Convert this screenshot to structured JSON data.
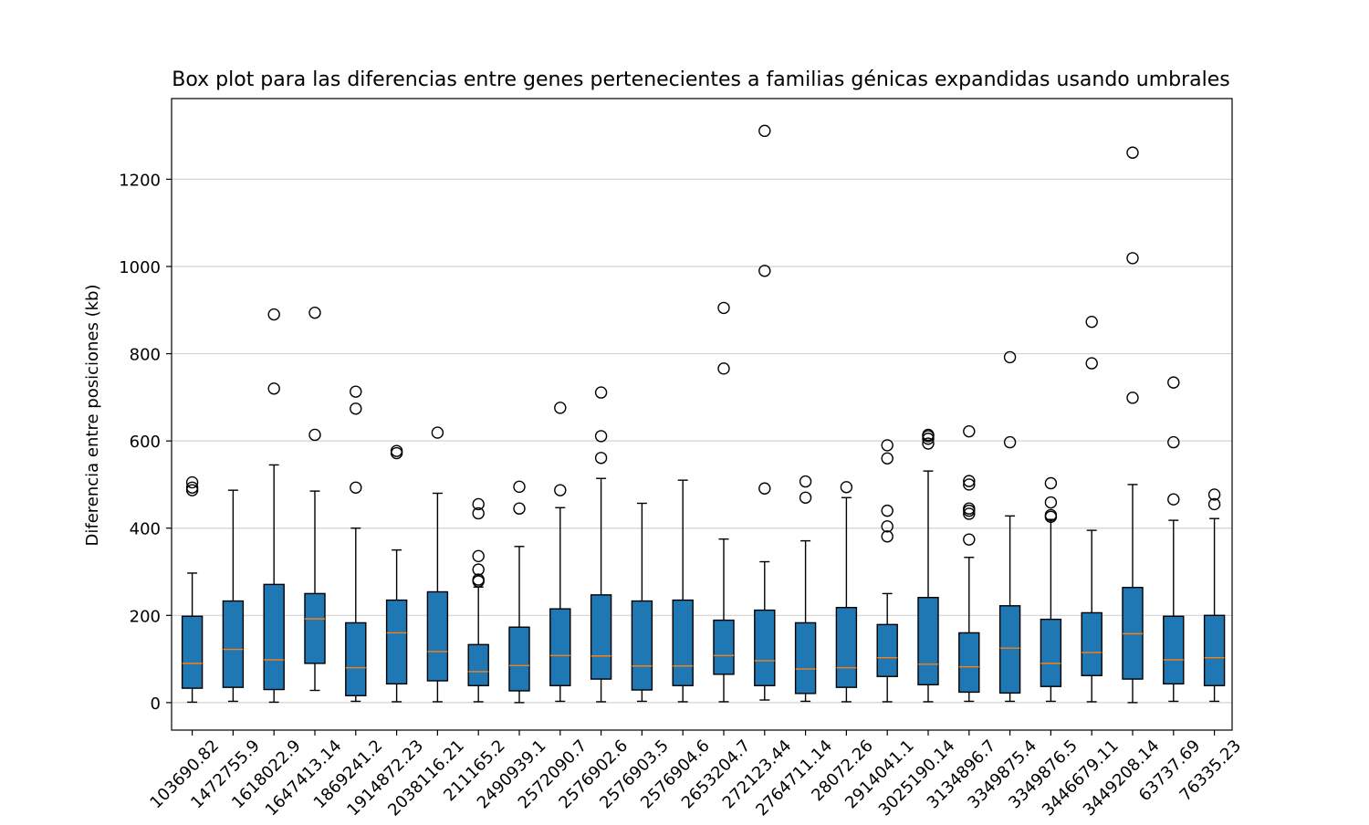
{
  "chart_data": {
    "type": "boxplot",
    "title": "Box plot para las diferencias entre genes pertenecientes a familias génicas expandidas usando umbrales",
    "xlabel": "",
    "ylabel": "Diferencia entre posiciones (kb)",
    "ylim": [
      -63,
      1385
    ],
    "yticks": [
      0,
      200,
      400,
      600,
      800,
      1000,
      1200
    ],
    "grid": "horizontal",
    "box_color": "#1f77b4",
    "median_color": "#ff7f0e",
    "categories": [
      "103690.82",
      "1472755.9",
      "1618022.9",
      "1647413.14",
      "1869241.2",
      "1914872.23",
      "2038116.21",
      "211165.2",
      "2490939.1",
      "2572090.7",
      "2576902.6",
      "2576903.5",
      "2576904.6",
      "2653204.7",
      "272123.44",
      "2764711.14",
      "28072.26",
      "2914041.1",
      "3025190.14",
      "3134896.7",
      "3349875.4",
      "3349876.5",
      "3446679.11",
      "3449208.14",
      "63737.69",
      "76335.23"
    ],
    "boxes": [
      {
        "whislo": 1,
        "q1": 33,
        "med": 90,
        "q3": 198,
        "whishi": 297,
        "fliers": [
          505,
          493,
          487
        ]
      },
      {
        "whislo": 3,
        "q1": 35,
        "med": 122,
        "q3": 233,
        "whishi": 487,
        "fliers": []
      },
      {
        "whislo": 1,
        "q1": 30,
        "med": 98,
        "q3": 271,
        "whishi": 545,
        "fliers": [
          720,
          890
        ]
      },
      {
        "whislo": 28,
        "q1": 90,
        "med": 192,
        "q3": 250,
        "whishi": 485,
        "fliers": [
          614,
          894
        ]
      },
      {
        "whislo": 3,
        "q1": 16,
        "med": 80,
        "q3": 183,
        "whishi": 400,
        "fliers": [
          493,
          674,
          713
        ]
      },
      {
        "whislo": 2,
        "q1": 43,
        "med": 160,
        "q3": 235,
        "whishi": 350,
        "fliers": [
          572,
          577
        ]
      },
      {
        "whislo": 2,
        "q1": 50,
        "med": 117,
        "q3": 254,
        "whishi": 480,
        "fliers": [
          619
        ]
      },
      {
        "whislo": 2,
        "q1": 39,
        "med": 71,
        "q3": 133,
        "whishi": 265,
        "fliers": [
          278,
          282,
          305,
          336,
          434,
          455
        ]
      },
      {
        "whislo": 0,
        "q1": 27,
        "med": 85,
        "q3": 173,
        "whishi": 358,
        "fliers": [
          445,
          495
        ]
      },
      {
        "whislo": 3,
        "q1": 39,
        "med": 108,
        "q3": 215,
        "whishi": 447,
        "fliers": [
          487,
          676
        ]
      },
      {
        "whislo": 2,
        "q1": 54,
        "med": 107,
        "q3": 247,
        "whishi": 514,
        "fliers": [
          561,
          611,
          711
        ]
      },
      {
        "whislo": 3,
        "q1": 29,
        "med": 84,
        "q3": 233,
        "whishi": 457,
        "fliers": []
      },
      {
        "whislo": 2,
        "q1": 39,
        "med": 84,
        "q3": 235,
        "whishi": 510,
        "fliers": []
      },
      {
        "whislo": 2,
        "q1": 65,
        "med": 108,
        "q3": 189,
        "whishi": 375,
        "fliers": [
          766,
          905
        ]
      },
      {
        "whislo": 6,
        "q1": 39,
        "med": 96,
        "q3": 212,
        "whishi": 323,
        "fliers": [
          491,
          990,
          1311
        ]
      },
      {
        "whislo": 3,
        "q1": 21,
        "med": 77,
        "q3": 183,
        "whishi": 371,
        "fliers": [
          470,
          507
        ]
      },
      {
        "whislo": 2,
        "q1": 35,
        "med": 80,
        "q3": 218,
        "whishi": 470,
        "fliers": [
          494
        ]
      },
      {
        "whislo": 2,
        "q1": 60,
        "med": 103,
        "q3": 179,
        "whishi": 250,
        "fliers": [
          381,
          404,
          440,
          560,
          590
        ]
      },
      {
        "whislo": 2,
        "q1": 41,
        "med": 88,
        "q3": 241,
        "whishi": 531,
        "fliers": [
          594,
          605,
          611,
          614
        ]
      },
      {
        "whislo": 3,
        "q1": 24,
        "med": 82,
        "q3": 160,
        "whishi": 333,
        "fliers": [
          374,
          433,
          440,
          445,
          500,
          508,
          622
        ]
      },
      {
        "whislo": 3,
        "q1": 22,
        "med": 125,
        "q3": 222,
        "whishi": 428,
        "fliers": [
          597,
          792
        ]
      },
      {
        "whislo": 3,
        "q1": 37,
        "med": 90,
        "q3": 191,
        "whishi": 420,
        "fliers": [
          426,
          430,
          459,
          503
        ]
      },
      {
        "whislo": 2,
        "q1": 62,
        "med": 115,
        "q3": 206,
        "whishi": 395,
        "fliers": [
          778,
          873
        ]
      },
      {
        "whislo": 0,
        "q1": 54,
        "med": 158,
        "q3": 264,
        "whishi": 500,
        "fliers": [
          699,
          1019,
          1261
        ]
      },
      {
        "whislo": 3,
        "q1": 43,
        "med": 98,
        "q3": 198,
        "whishi": 418,
        "fliers": [
          466,
          597,
          734
        ]
      },
      {
        "whislo": 3,
        "q1": 39,
        "med": 103,
        "q3": 200,
        "whishi": 422,
        "fliers": [
          455,
          477
        ]
      }
    ]
  }
}
